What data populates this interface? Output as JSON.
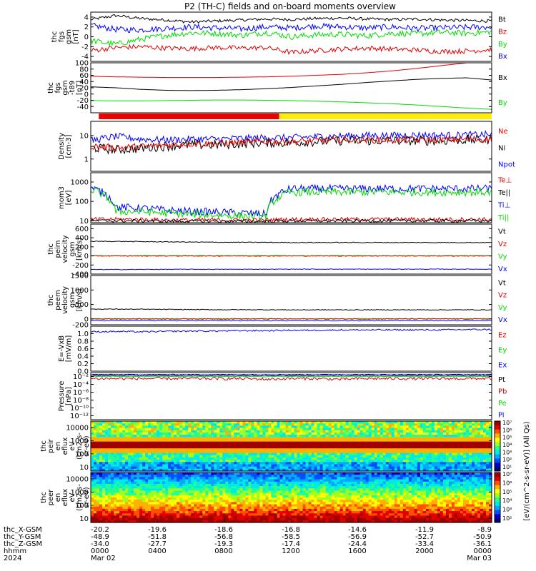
{
  "title": "P2 (TH-C) fields and on-board moments overview",
  "colors": {
    "black": "#000000",
    "red": "#e00000",
    "green": "#00dd00",
    "blue": "#0000ff",
    "bar_red": "#ee0000",
    "bar_yellow": "#ffee00"
  },
  "chart_data": [
    {
      "type": "line",
      "id": "fgs",
      "ylabel": [
        "thc",
        "fgs",
        "gsm",
        "[nT]"
      ],
      "ylim": [
        -5,
        5
      ],
      "yticks": [
        "4",
        "2",
        "0",
        "-2",
        "-4"
      ],
      "ytick_values": [
        4,
        2,
        0,
        -2,
        -4
      ],
      "legend": [
        {
          "label": "Bt",
          "color": "black"
        },
        {
          "label": "Bz",
          "color": "red"
        },
        {
          "label": "By",
          "color": "green"
        },
        {
          "label": "Bx",
          "color": "blue"
        }
      ],
      "series": [
        {
          "name": "Bt",
          "color": "black",
          "values": [
            3.5,
            4.3,
            3.7,
            3.4,
            3.0,
            3.2,
            3.4,
            3.6,
            3.5,
            3.7,
            3.8,
            3.6,
            3.5,
            3.6,
            3.4,
            3.3,
            3.2
          ],
          "noise": 0.3
        },
        {
          "name": "Bx",
          "color": "blue",
          "values": [
            2.3,
            1.5,
            1.4,
            1.7,
            2.0,
            1.8,
            1.6,
            2.0,
            1.8,
            2.2,
            2.0,
            1.8,
            2.0,
            1.7,
            1.8,
            1.9,
            2.0
          ],
          "noise": 0.6
        },
        {
          "name": "By",
          "color": "green",
          "values": [
            -0.8,
            -1.5,
            -0.5,
            0.3,
            0.8,
            0.7,
            0.3,
            0.9,
            0.0,
            0.4,
            0.5,
            0.2,
            0.7,
            0.6,
            0.9,
            0.7,
            1.0
          ],
          "noise": 0.6
        },
        {
          "name": "Bz",
          "color": "red",
          "values": [
            -2.8,
            -2.2,
            -2.0,
            -2.3,
            -2.4,
            -2.2,
            -2.3,
            -2.2,
            -3.2,
            -2.8,
            -2.5,
            -2.3,
            -2.5,
            -2.7,
            -3.0,
            -2.9,
            -2.6
          ],
          "noise": 0.5
        }
      ]
    },
    {
      "type": "line",
      "id": "fgs_dsl",
      "ylabel": [
        "thc",
        "fgs",
        "gsm",
        "-t89",
        "[nT]"
      ],
      "ylim": [
        -60,
        100
      ],
      "yticks": [
        "100",
        "80",
        "60",
        "40",
        "20",
        "0",
        "-20",
        "-40"
      ],
      "ytick_values": [
        100,
        80,
        60,
        40,
        20,
        0,
        -20,
        -40
      ],
      "legend": [
        {
          "label": "Bx",
          "color": "black"
        },
        {
          "label": "By",
          "color": "green"
        }
      ],
      "series": [
        {
          "name": "red_unlabeled",
          "color": "red",
          "values": [
            57,
            55,
            54,
            53,
            53,
            53,
            54,
            55,
            57,
            60,
            63,
            68,
            74,
            82,
            91,
            100,
            108
          ],
          "noise": 0
        },
        {
          "name": "Bx",
          "color": "black",
          "values": [
            23,
            20,
            15,
            12,
            11,
            12,
            14,
            17,
            21,
            26,
            31,
            37,
            42,
            47,
            50,
            52,
            45
          ],
          "noise": 0
        },
        {
          "name": "By",
          "color": "green",
          "values": [
            -21,
            -22,
            -22,
            -21,
            -20,
            -19,
            -19,
            -20,
            -21,
            -23,
            -25,
            -28,
            -31,
            -35,
            -40,
            -45,
            -49
          ],
          "noise": 0
        }
      ]
    },
    {
      "type": "line",
      "id": "density",
      "scale": "log",
      "ylabel": [
        "Density",
        "[cm-3]"
      ],
      "ylim": [
        0.3,
        40
      ],
      "yticks": [
        "10",
        "1"
      ],
      "ytick_values": [
        10,
        1
      ],
      "legend": [
        {
          "label": "Ne",
          "color": "red"
        },
        {
          "label": "Ni",
          "color": "black"
        },
        {
          "label": "Npot",
          "color": "blue"
        }
      ],
      "series": [
        {
          "name": "Npot",
          "color": "blue",
          "values": [
            6,
            9,
            7,
            6.5,
            7,
            7,
            7.5,
            8,
            8,
            9,
            9.5,
            10,
            10,
            10.5,
            10,
            10.5,
            11
          ],
          "noise": 0.15
        },
        {
          "name": "Ni",
          "color": "black",
          "values": [
            3,
            2.5,
            2.8,
            3.5,
            4,
            4,
            4.5,
            5,
            5,
            5.5,
            6,
            6,
            6,
            6,
            6,
            6.5,
            6.5
          ],
          "noise": 0.2
        },
        {
          "name": "Ne",
          "color": "red",
          "values": [
            3.5,
            3,
            3.3,
            4,
            4.5,
            4.5,
            5,
            5.5,
            5.5,
            6,
            6.5,
            6.5,
            6.5,
            6.5,
            6.5,
            7,
            7
          ],
          "noise": 0.15
        }
      ]
    },
    {
      "type": "line",
      "id": "moms",
      "scale": "log",
      "ylabel": [
        "mom3",
        "[eV]"
      ],
      "ylim": [
        8,
        3000
      ],
      "yticks": [
        "1000",
        "100",
        "10"
      ],
      "ytick_values": [
        1000,
        100,
        10
      ],
      "legend": [
        {
          "label": "Te⊥",
          "color": "red"
        },
        {
          "label": "Te||",
          "color": "black"
        },
        {
          "label": "Ti⊥",
          "color": "blue"
        },
        {
          "label": "Ti||",
          "color": "green"
        }
      ],
      "series": [
        {
          "name": "Ti⊥",
          "color": "blue",
          "values": [
            500,
            50,
            45,
            35,
            30,
            28,
            25,
            22,
            450,
            450,
            450,
            450,
            450,
            450,
            450,
            450,
            450
          ],
          "noise": 0.2
        },
        {
          "name": "Ti||",
          "color": "green",
          "values": [
            400,
            30,
            30,
            25,
            22,
            20,
            18,
            16,
            300,
            300,
            300,
            300,
            300,
            300,
            300,
            300,
            300
          ],
          "noise": 0.2
        },
        {
          "name": "Te⊥",
          "color": "red",
          "values": [
            12,
            12,
            12,
            11,
            11,
            11,
            11,
            11,
            12,
            12,
            12,
            12,
            12,
            12,
            12,
            12,
            12
          ],
          "noise": 0.1
        },
        {
          "name": "Te||",
          "color": "black",
          "values": [
            10,
            10,
            10,
            9.5,
            9.5,
            9.5,
            9.5,
            9.5,
            10,
            10,
            10,
            10,
            10,
            10,
            10,
            10,
            10
          ],
          "noise": 0.08
        }
      ]
    },
    {
      "type": "line",
      "id": "peim_vel",
      "ylabel": [
        "thc",
        "peim",
        "velocity",
        "gsm",
        "[km/s]"
      ],
      "ylim": [
        -400,
        700
      ],
      "yticks": [
        "600",
        "400",
        "200",
        "0",
        "-200",
        "-400"
      ],
      "ytick_values": [
        600,
        400,
        200,
        0,
        -200,
        -400
      ],
      "legend": [
        {
          "label": "Vt",
          "color": "black"
        },
        {
          "label": "Vz",
          "color": "red"
        },
        {
          "label": "Vy",
          "color": "green"
        },
        {
          "label": "Vx",
          "color": "blue"
        }
      ],
      "series": [
        {
          "name": "Vt",
          "color": "black",
          "values": [
            320,
            320,
            315,
            310,
            305,
            300,
            300,
            298,
            295,
            295,
            295,
            295,
            295,
            295,
            295,
            295,
            295
          ],
          "noise": 8
        },
        {
          "name": "Vy",
          "color": "green",
          "values": [
            5,
            5,
            5,
            5,
            5,
            5,
            5,
            5,
            5,
            5,
            5,
            5,
            5,
            5,
            5,
            5,
            5
          ],
          "noise": 6
        },
        {
          "name": "Vz",
          "color": "red",
          "values": [
            0,
            0,
            0,
            0,
            0,
            0,
            0,
            0,
            0,
            0,
            0,
            0,
            0,
            0,
            0,
            0,
            0
          ],
          "noise": 10
        },
        {
          "name": "Vx",
          "color": "blue",
          "values": [
            -300,
            -300,
            -298,
            -296,
            -295,
            -295,
            -294,
            -293,
            -292,
            -292,
            -292,
            -292,
            -292,
            -292,
            -292,
            -292,
            -292
          ],
          "noise": 6
        }
      ]
    },
    {
      "type": "line",
      "id": "peem_vel",
      "ylabel": [
        "thc",
        "peem",
        "velocity",
        "gsm",
        "[km/s]"
      ],
      "ylim": [
        -200,
        1500
      ],
      "yticks": [
        "1500",
        "1000",
        "500",
        "0",
        "-200"
      ],
      "ytick_values": [
        1500,
        1000,
        500,
        0,
        -200
      ],
      "legend": [
        {
          "label": "Vt",
          "color": "black"
        },
        {
          "label": "Vz",
          "color": "red"
        },
        {
          "label": "Vy",
          "color": "green"
        },
        {
          "label": "Vx",
          "color": "blue"
        }
      ],
      "series": [
        {
          "name": "Vt",
          "color": "black",
          "values": [
            340,
            340,
            335,
            330,
            325,
            320,
            320,
            318,
            315,
            315,
            315,
            315,
            315,
            315,
            315,
            315,
            315
          ],
          "noise": 12
        },
        {
          "name": "Vy",
          "color": "green",
          "values": [
            10,
            10,
            10,
            10,
            10,
            10,
            10,
            10,
            10,
            10,
            10,
            10,
            10,
            10,
            10,
            10,
            10
          ],
          "noise": 10
        },
        {
          "name": "Vz",
          "color": "red",
          "values": [
            0,
            0,
            0,
            0,
            0,
            0,
            0,
            0,
            0,
            0,
            0,
            0,
            0,
            0,
            0,
            0,
            0
          ],
          "noise": 15
        },
        {
          "name": "Vx",
          "color": "blue",
          "values": [
            -60,
            -60,
            -60,
            -60,
            -60,
            -60,
            -60,
            -60,
            -60,
            -60,
            -60,
            -60,
            -60,
            -60,
            -60,
            -60,
            -60
          ],
          "noise": 10
        }
      ]
    },
    {
      "type": "line",
      "id": "efield",
      "ylabel": [
        "E=-VxB",
        "[mV/m]"
      ],
      "ylim": [
        0.0,
        1.2
      ],
      "yticks": [
        "1.0",
        "0.8",
        "0.6",
        "0.4",
        "0.2",
        "0.0"
      ],
      "ytick_values": [
        1.0,
        0.8,
        0.6,
        0.4,
        0.2,
        0.0
      ],
      "legend": [
        {
          "label": "Ez",
          "color": "red"
        },
        {
          "label": "Ey",
          "color": "green"
        },
        {
          "label": "Ex",
          "color": "blue"
        }
      ],
      "series": [
        {
          "name": "Ex",
          "color": "blue",
          "values": [
            1.05,
            1.06,
            1.05,
            1.06,
            1.07,
            1.07,
            1.08,
            1.08,
            1.09,
            1.09,
            1.1,
            1.1,
            1.1,
            1.1,
            1.1,
            1.11,
            1.11
          ],
          "noise": 0.02
        }
      ]
    },
    {
      "type": "line",
      "id": "pressure",
      "scale": "log",
      "ylabel": [
        "Pressure",
        "[nPa]"
      ],
      "ylim": [
        1e-13,
        0.1
      ],
      "yticks": [
        "10⁻²",
        "10⁻⁴",
        "10⁻⁶",
        "10⁻⁸",
        "10⁻¹⁰",
        "10⁻¹²"
      ],
      "ytick_values": [
        0.01,
        0.0001,
        1e-06,
        1e-08,
        1e-10,
        1e-12
      ],
      "legend": [
        {
          "label": "Pt",
          "color": "black"
        },
        {
          "label": "Pb",
          "color": "red"
        },
        {
          "label": "Pe",
          "color": "green"
        },
        {
          "label": "Pi",
          "color": "blue"
        }
      ],
      "series": [
        {
          "name": "Pt",
          "color": "black",
          "values": [
            0.03,
            0.03,
            0.03,
            0.03,
            0.03,
            0.03,
            0.03,
            0.03,
            0.03,
            0.03,
            0.03,
            0.03,
            0.03,
            0.03,
            0.03,
            0.03,
            0.03
          ],
          "noise": 0.1
        },
        {
          "name": "Pi",
          "color": "blue",
          "values": [
            0.02,
            0.02,
            0.02,
            0.02,
            0.02,
            0.02,
            0.02,
            0.02,
            0.02,
            0.02,
            0.02,
            0.02,
            0.02,
            0.02,
            0.02,
            0.02,
            0.02
          ],
          "noise": 0.1
        },
        {
          "name": "Pe",
          "color": "green",
          "values": [
            0.01,
            0.01,
            0.01,
            0.01,
            0.01,
            0.01,
            0.01,
            0.01,
            0.01,
            0.01,
            0.01,
            0.01,
            0.01,
            0.01,
            0.01,
            0.01,
            0.01
          ],
          "noise": 0.1
        },
        {
          "name": "Pb",
          "color": "red",
          "values": [
            0.003,
            0.003,
            0.003,
            0.003,
            0.003,
            0.003,
            0.003,
            0.002,
            0.003,
            0.003,
            0.002,
            0.003,
            0.003,
            0.003,
            0.003,
            0.003,
            0.003
          ],
          "noise": 0.35
        }
      ]
    },
    {
      "type": "heatmap",
      "id": "peir",
      "ylabel": [
        "thc",
        "peir",
        "en",
        "eflux",
        "eV",
        "(cm2-s-",
        "sr-eV)"
      ],
      "yticks": [
        "10000",
        "1000",
        "100",
        "10"
      ],
      "ytick_values": [
        10000,
        1000,
        100,
        10
      ],
      "ylim": [
        5,
        30000
      ],
      "scale": "log"
    },
    {
      "type": "heatmap",
      "id": "peer",
      "ylabel": [
        "thc",
        "peer",
        "en",
        "eflux",
        "eV",
        "(cm2-s-",
        "sr-eV)"
      ],
      "yticks": [
        "10000",
        "1000",
        "100",
        "10"
      ],
      "ytick_values": [
        10000,
        1000,
        100,
        10
      ],
      "ylim": [
        5,
        30000
      ],
      "scale": "log"
    }
  ],
  "status_bar": {
    "segments": [
      {
        "from": 0.02,
        "to": 0.47,
        "color": "bar_red"
      },
      {
        "from": 0.47,
        "to": 1.0,
        "color": "bar_yellow"
      }
    ]
  },
  "colorbar": {
    "label": "[eV/(cm^2-s-sr-eV)] (All Qs)",
    "top": {
      "ticks": [
        "10⁷",
        "10⁶",
        "10⁵",
        "10⁴",
        "10³",
        "10²",
        "10¹"
      ]
    },
    "bottom": {
      "ticks": [
        "10⁷",
        "10⁶",
        "10⁵",
        "10⁴",
        "10³",
        "10²"
      ]
    }
  },
  "x_axis": {
    "rows": [
      {
        "label": "thc_X-GSM",
        "values": [
          "-20.2",
          "-19.6",
          "-18.6",
          "-16.8",
          "-14.6",
          "-11.9",
          "-8.9"
        ]
      },
      {
        "label": "thc_Y-GSM",
        "values": [
          "-48.9",
          "-51.8",
          "-56.8",
          "-58.5",
          "-56.9",
          "-52.7",
          "-50.9"
        ]
      },
      {
        "label": "thc_Z-GSM",
        "values": [
          "-34.0",
          "-27.7",
          "-19.3",
          "-17.4",
          "-24.4",
          "-33.4",
          "-36.1"
        ]
      },
      {
        "label": "hhmm",
        "values": [
          "0000",
          "0400",
          "0800",
          "1200",
          "1600",
          "2000",
          "0000"
        ]
      },
      {
        "label": "2024",
        "values": [
          "Mar 02",
          "",
          "",
          "",
          "",
          "",
          "Mar 03"
        ]
      }
    ]
  }
}
